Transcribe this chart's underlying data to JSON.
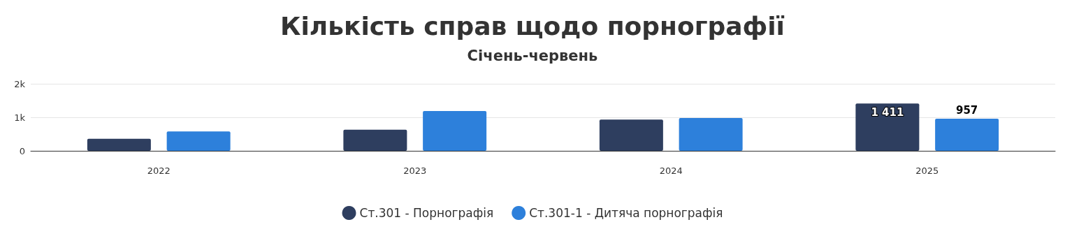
{
  "chart_data": {
    "type": "bar",
    "title": "Кількість справ щодо порнографії",
    "subtitle": "Січень-червень",
    "categories": [
      "2022",
      "2023",
      "2024",
      "2025"
    ],
    "series": [
      {
        "name": "Ст.301 - Порнографія",
        "color": "#2e3e5f",
        "values": [
          360,
          630,
          930,
          1411
        ],
        "value_labels": [
          null,
          null,
          null,
          "1 411"
        ]
      },
      {
        "name": "Ст.301-1 - Дитяча порнографія",
        "color": "#2d80db",
        "values": [
          580,
          1190,
          980,
          957
        ],
        "value_labels": [
          null,
          null,
          null,
          "957"
        ]
      }
    ],
    "ylim": [
      0,
      2000
    ],
    "yticks": [
      0,
      {
        "value": 1000,
        "label": "1k"
      },
      {
        "value": 2000,
        "label": "2k"
      }
    ],
    "grid": "y",
    "legend": "bottom"
  }
}
